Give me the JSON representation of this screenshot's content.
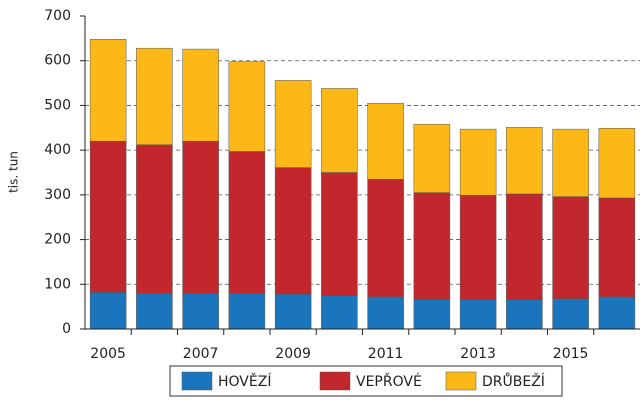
{
  "chart_data": {
    "type": "stacked_bar",
    "y_label": "tis. tun",
    "categories": [
      "2005",
      null,
      "2007",
      null,
      "2009",
      null,
      "2011",
      null,
      "2013",
      null,
      "2015",
      null
    ],
    "series": [
      {
        "name": "HOVĚZÍ",
        "color": "#1b75bc",
        "values": [
          82,
          80,
          80,
          80,
          78,
          75,
          72,
          67,
          66,
          66,
          68,
          72
        ]
      },
      {
        "name": "VEPŘOVÉ",
        "color": "#c1272d",
        "values": [
          338,
          332,
          340,
          317,
          283,
          275,
          263,
          238,
          233,
          236,
          228,
          221
        ]
      },
      {
        "name": "DRŮBEŽÍ",
        "color": "#fbb817",
        "values": [
          228,
          216,
          206,
          201,
          195,
          188,
          170,
          153,
          148,
          149,
          151,
          156
        ]
      }
    ],
    "ylim": [
      0,
      700
    ],
    "yticks": [
      0,
      100,
      200,
      300,
      400,
      500,
      600,
      700
    ],
    "grid": true
  }
}
